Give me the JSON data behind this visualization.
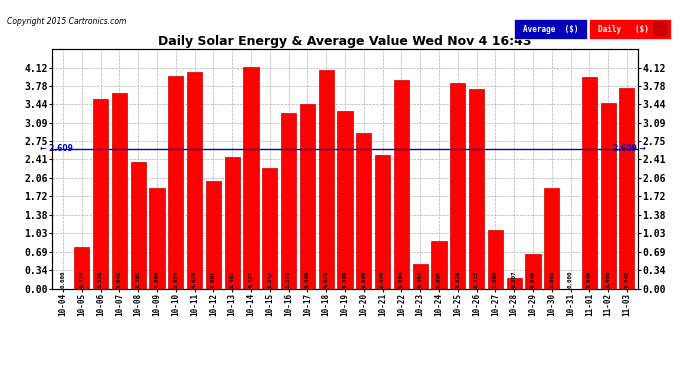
{
  "title": "Daily Solar Energy & Average Value Wed Nov 4 16:43",
  "copyright": "Copyright 2015 Cartronics.com",
  "average_value": 2.609,
  "categories": [
    "10-04",
    "10-05",
    "10-06",
    "10-07",
    "10-08",
    "10-09",
    "10-10",
    "10-11",
    "10-12",
    "10-13",
    "10-14",
    "10-15",
    "10-16",
    "10-17",
    "10-18",
    "10-19",
    "10-20",
    "10-21",
    "10-22",
    "10-23",
    "10-24",
    "10-25",
    "10-26",
    "10-27",
    "10-28",
    "10-29",
    "10-30",
    "10-31",
    "11-01",
    "11-02",
    "11-03"
  ],
  "values": [
    0.0,
    0.774,
    3.528,
    3.641,
    2.365,
    1.868,
    3.954,
    4.029,
    2.001,
    2.462,
    4.125,
    2.242,
    3.277,
    3.449,
    4.071,
    3.309,
    2.908,
    2.496,
    3.894,
    0.467,
    0.895,
    3.828,
    3.715,
    1.098,
    0.207,
    0.648,
    1.881,
    0.0,
    3.948,
    3.46,
    3.742
  ],
  "bar_color": "#ff0000",
  "bar_edge_color": "#cc0000",
  "average_line_color": "#0000bb",
  "background_color": "#ffffff",
  "plot_bg_color": "#ffffff",
  "grid_color": "#b0b0b0",
  "ylim_max": 4.47,
  "yticks": [
    0.0,
    0.34,
    0.69,
    1.03,
    1.38,
    1.72,
    2.06,
    2.41,
    2.75,
    3.09,
    3.44,
    3.78,
    4.12
  ],
  "legend_avg_bg": "#0000bb",
  "legend_daily_bg": "#ff0000",
  "legend_avg_text": "Average  ($)",
  "legend_daily_text": "Daily   ($)"
}
